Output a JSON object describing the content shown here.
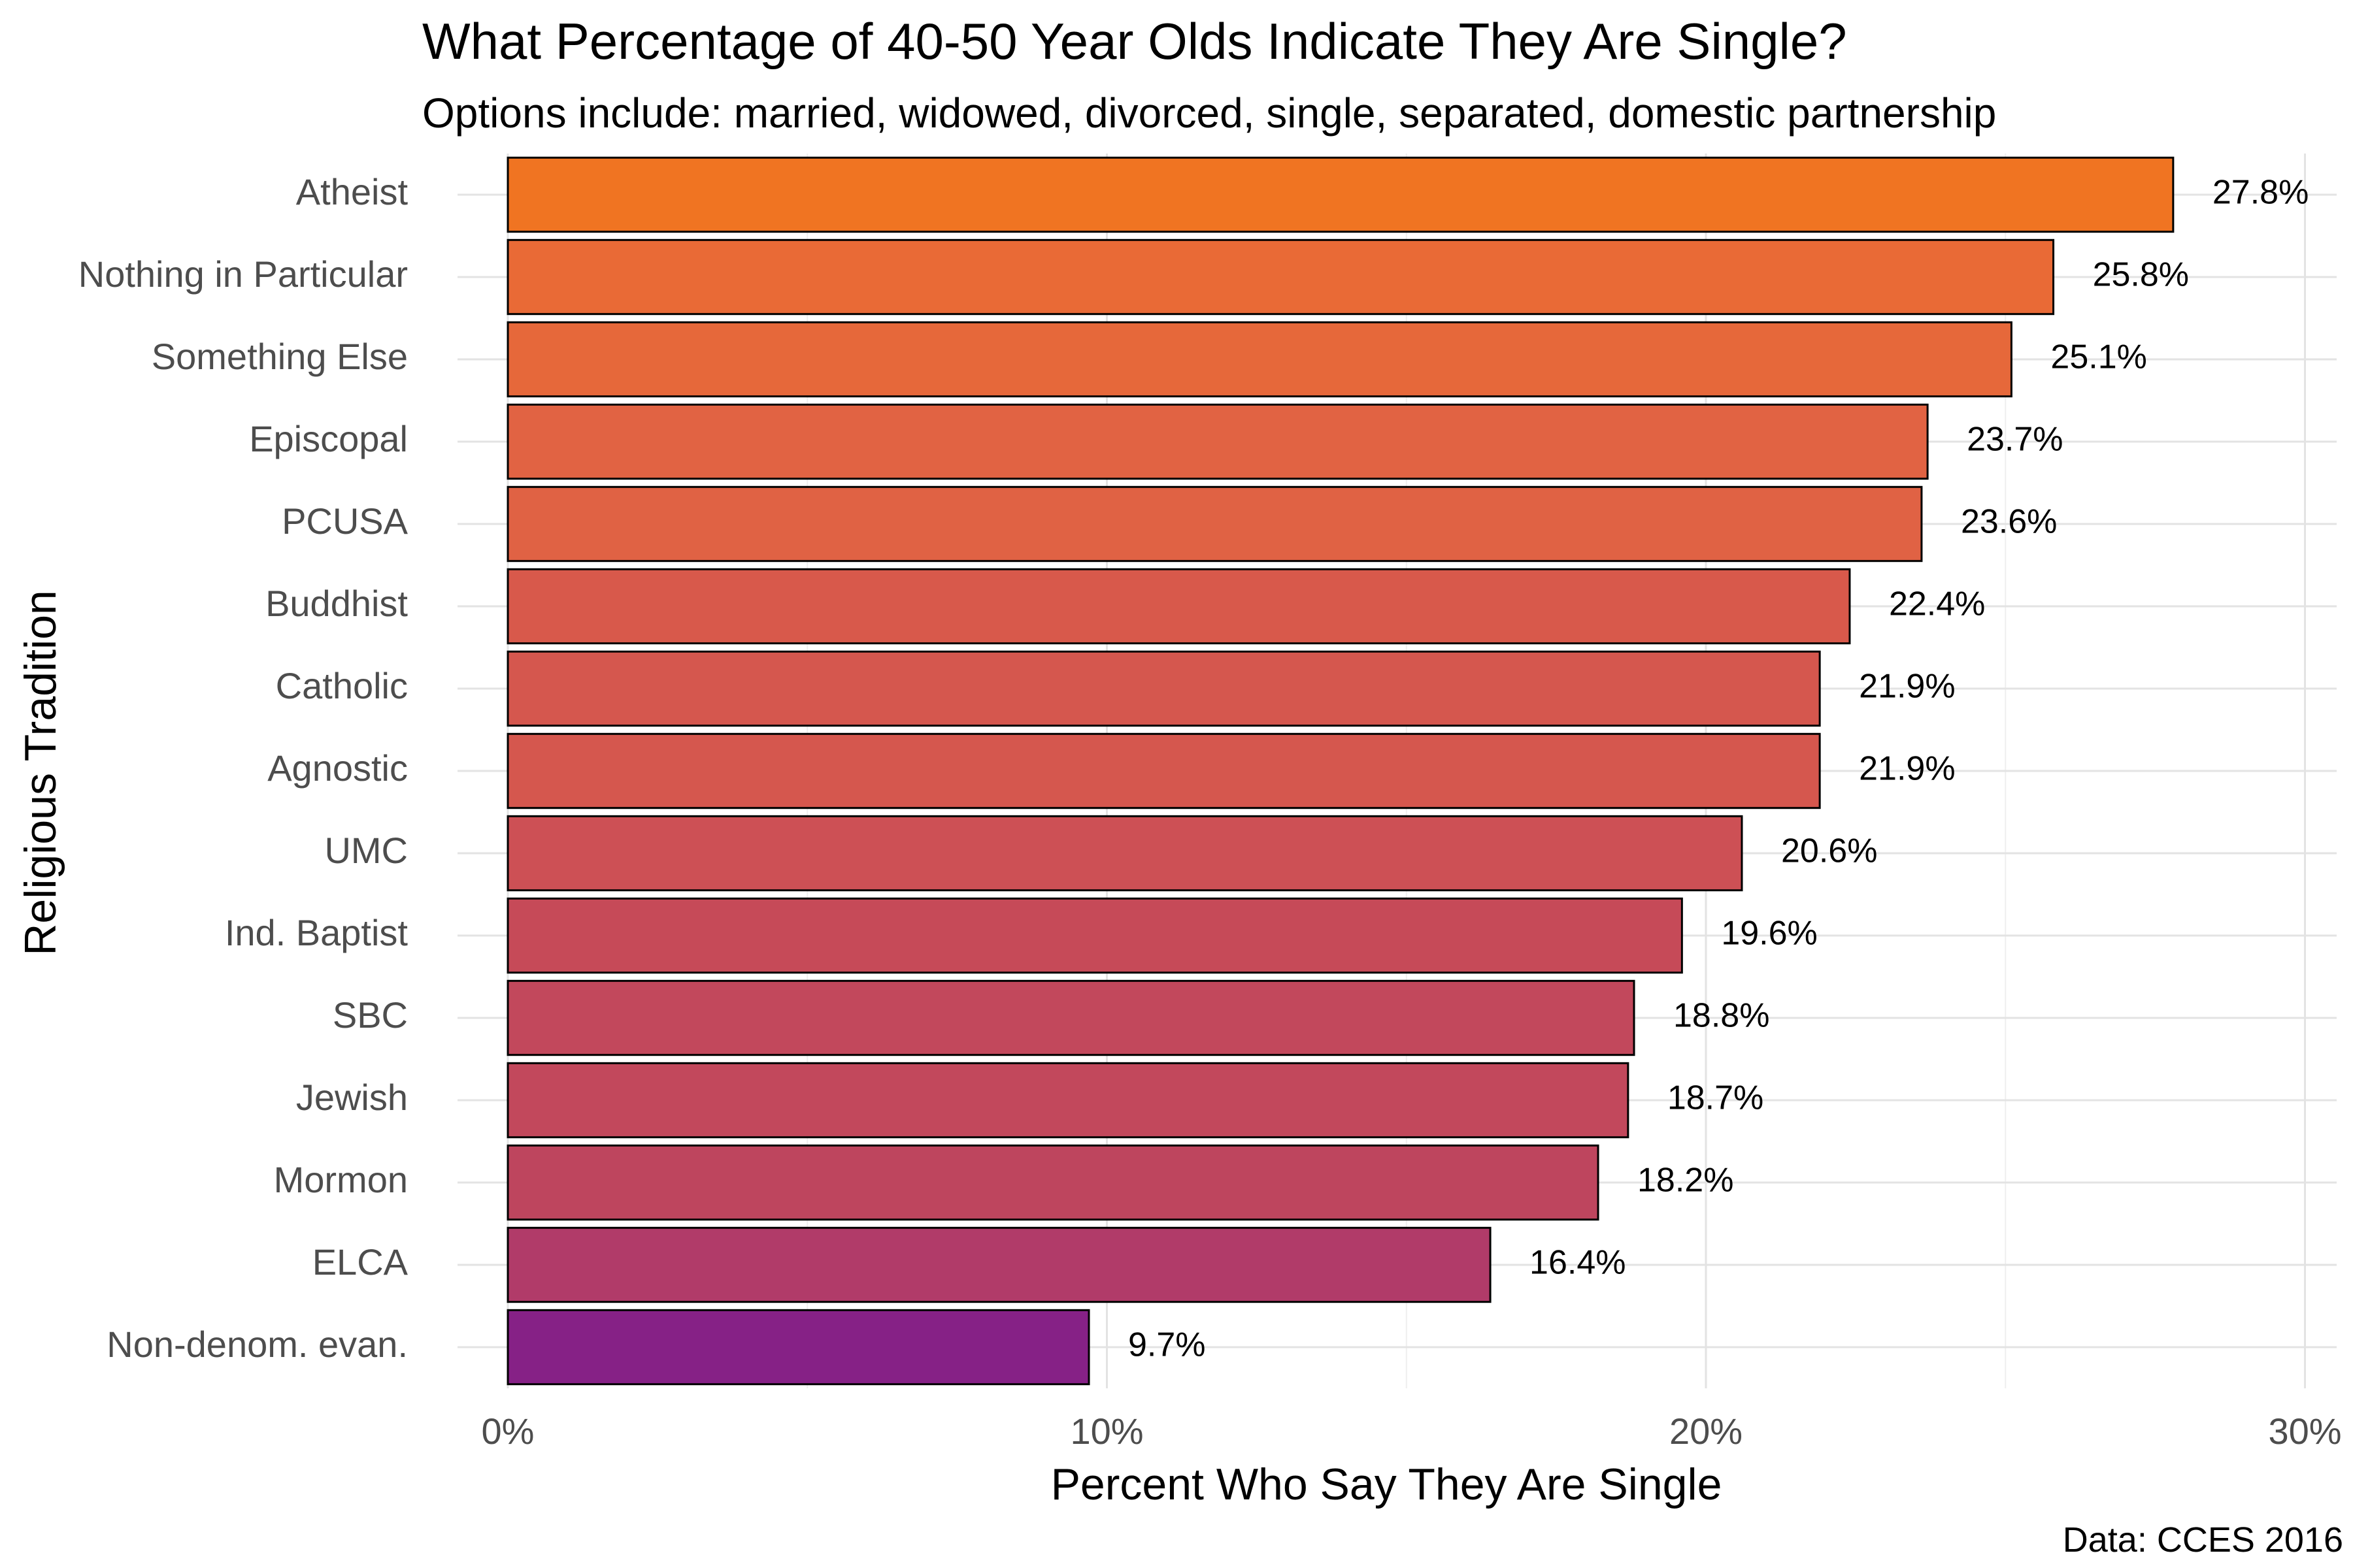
{
  "chart_data": {
    "type": "bar",
    "orientation": "horizontal",
    "title": "What Percentage of 40-50 Year Olds Indicate They Are Single?",
    "subtitle": "Options include: married, widowed, divorced, single, separated, domestic partnership",
    "xlabel": "Percent Who Say They Are Single",
    "ylabel": "Religious Tradition",
    "caption": "Data: CCES 2016",
    "xlim": [
      0,
      30
    ],
    "xticks": [
      0,
      10,
      20,
      30
    ],
    "xtick_labels": [
      "0%",
      "10%",
      "20%",
      "30%"
    ],
    "grid": true,
    "categories": [
      "Atheist",
      "Nothing in Particular",
      "Something Else",
      "Episcopal",
      "PCUSA",
      "Buddhist",
      "Catholic",
      "Agnostic",
      "UMC",
      "Ind. Baptist",
      "SBC",
      "Jewish",
      "Mormon",
      "ELCA",
      "Non-denom. evan."
    ],
    "values": [
      27.8,
      25.8,
      25.1,
      23.7,
      23.6,
      22.4,
      21.9,
      21.9,
      20.6,
      19.6,
      18.8,
      18.7,
      18.2,
      16.4,
      9.7
    ],
    "value_labels": [
      "27.8%",
      "25.8%",
      "25.1%",
      "23.7%",
      "23.6%",
      "22.4%",
      "21.9%",
      "21.9%",
      "20.6%",
      "19.6%",
      "18.8%",
      "18.7%",
      "18.2%",
      "16.4%",
      "9.7%"
    ],
    "colors": [
      "#F07422",
      "#E96A36",
      "#E6683A",
      "#E16343",
      "#E06244",
      "#D8594B",
      "#D5574E",
      "#D5574E",
      "#CD5055",
      "#C64A58",
      "#C2485C",
      "#C2485C",
      "#BE455E",
      "#B13B69",
      "#862186"
    ]
  }
}
